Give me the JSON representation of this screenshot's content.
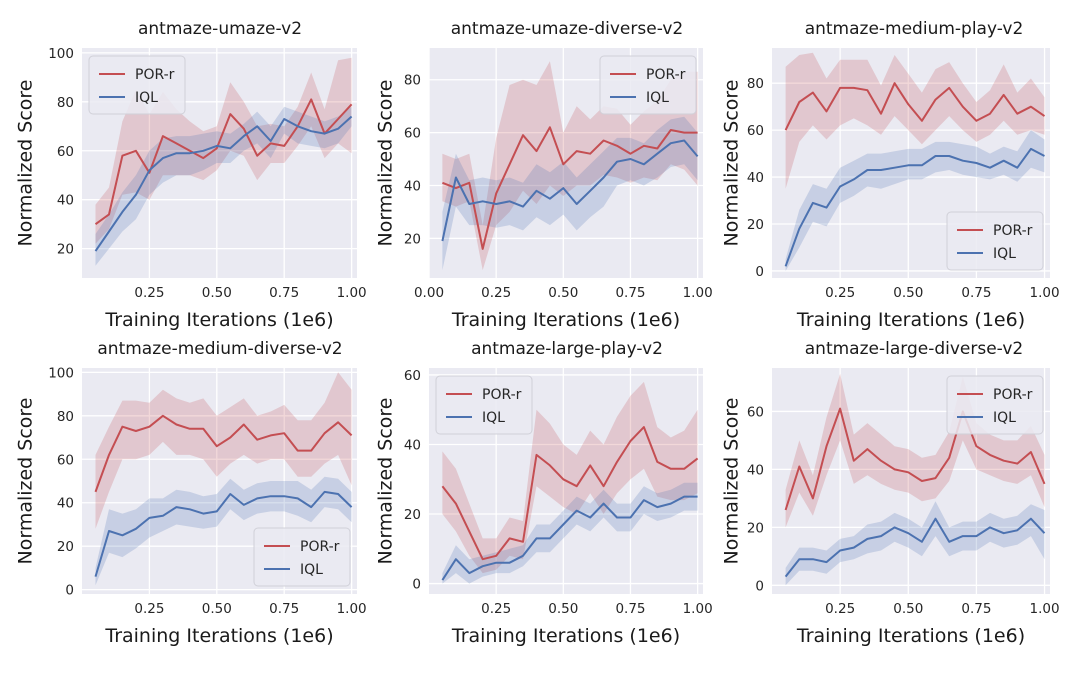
{
  "figure": {
    "colors": {
      "por": "#c44e52",
      "iql": "#4c72b0",
      "axes_bg": "#eaeaf2",
      "grid": "#ffffff"
    },
    "legend_labels": [
      "POR-r",
      "IQL"
    ]
  },
  "chart_data": [
    {
      "type": "line",
      "title": "antmaze-umaze-v2",
      "xlabel": "Training Iterations (1e6)",
      "ylabel": "Normalized Score",
      "xlim": [
        0.0,
        1.02
      ],
      "ylim": [
        8,
        102
      ],
      "xticks": [
        0.25,
        0.5,
        0.75,
        1.0
      ],
      "xticklabels": [
        "0.25",
        "0.50",
        "0.75",
        "1.00"
      ],
      "yticks": [
        20,
        40,
        60,
        80,
        100
      ],
      "legend": "top-left",
      "x": [
        0.05,
        0.1,
        0.15,
        0.2,
        0.25,
        0.3,
        0.35,
        0.4,
        0.45,
        0.5,
        0.55,
        0.6,
        0.65,
        0.7,
        0.75,
        0.8,
        0.85,
        0.9,
        0.95,
        1.0
      ],
      "series": [
        {
          "name": "POR-r",
          "values": [
            30,
            34,
            58,
            60,
            51,
            66,
            63,
            60,
            57,
            61,
            75,
            69,
            58,
            63,
            62,
            70,
            81,
            67,
            73,
            79
          ],
          "lower": [
            22,
            28,
            42,
            43,
            40,
            50,
            50,
            50,
            48,
            52,
            60,
            58,
            48,
            55,
            55,
            62,
            70,
            57,
            63,
            59
          ],
          "upper": [
            38,
            45,
            72,
            85,
            75,
            84,
            77,
            72,
            68,
            70,
            88,
            80,
            70,
            71,
            70,
            78,
            92,
            77,
            97,
            98
          ]
        },
        {
          "name": "IQL",
          "values": [
            19,
            27,
            35,
            42,
            52,
            57,
            59,
            59,
            60,
            62,
            61,
            66,
            70,
            64,
            73,
            70,
            68,
            67,
            69,
            74
          ],
          "lower": [
            13,
            20,
            27,
            32,
            42,
            47,
            50,
            50,
            52,
            55,
            55,
            60,
            63,
            57,
            67,
            63,
            62,
            61,
            63,
            70
          ],
          "upper": [
            26,
            34,
            43,
            50,
            60,
            65,
            66,
            66,
            67,
            68,
            67,
            71,
            76,
            70,
            78,
            76,
            74,
            72,
            74,
            78
          ]
        }
      ]
    },
    {
      "type": "line",
      "title": "antmaze-umaze-diverse-v2",
      "xlabel": "Training Iterations (1e6)",
      "ylabel": "Normalized Score",
      "xlim": [
        0.0,
        1.02
      ],
      "ylim": [
        5,
        92
      ],
      "xticks": [
        0.0,
        0.25,
        0.5,
        0.75,
        1.0
      ],
      "xticklabels": [
        "0.00",
        "0.25",
        "0.50",
        "0.75",
        "1.00"
      ],
      "yticks": [
        20,
        40,
        60,
        80
      ],
      "legend": "top-right",
      "x": [
        0.05,
        0.1,
        0.15,
        0.2,
        0.25,
        0.3,
        0.35,
        0.4,
        0.45,
        0.5,
        0.55,
        0.6,
        0.65,
        0.7,
        0.75,
        0.8,
        0.85,
        0.9,
        0.95,
        1.0
      ],
      "series": [
        {
          "name": "POR-r",
          "values": [
            41,
            39,
            41,
            16,
            37,
            48,
            59,
            53,
            62,
            48,
            53,
            52,
            57,
            55,
            52,
            55,
            54,
            61,
            60,
            60
          ],
          "lower": [
            34,
            32,
            34,
            8,
            25,
            30,
            38,
            33,
            40,
            36,
            40,
            40,
            44,
            43,
            41,
            43,
            42,
            48,
            46,
            40
          ],
          "upper": [
            52,
            50,
            52,
            25,
            58,
            78,
            80,
            78,
            87,
            60,
            70,
            65,
            70,
            69,
            63,
            68,
            72,
            80,
            83,
            83
          ]
        },
        {
          "name": "IQL",
          "values": [
            19,
            43,
            33,
            34,
            33,
            34,
            32,
            38,
            35,
            39,
            33,
            38,
            43,
            49,
            50,
            48,
            52,
            56,
            57,
            51
          ],
          "lower": [
            8,
            32,
            25,
            25,
            24,
            25,
            23,
            28,
            25,
            29,
            23,
            28,
            32,
            40,
            42,
            40,
            43,
            47,
            48,
            42
          ],
          "upper": [
            30,
            52,
            42,
            43,
            42,
            43,
            41,
            48,
            45,
            49,
            43,
            48,
            53,
            58,
            58,
            56,
            61,
            65,
            66,
            60
          ]
        }
      ]
    },
    {
      "type": "line",
      "title": "antmaze-medium-play-v2",
      "xlabel": "Training Iterations (1e6)",
      "ylabel": "Normalized Score",
      "xlim": [
        0.0,
        1.02
      ],
      "ylim": [
        -3,
        95
      ],
      "xticks": [
        0.25,
        0.5,
        0.75,
        1.0
      ],
      "xticklabels": [
        "0.25",
        "0.50",
        "0.75",
        "1.00"
      ],
      "yticks": [
        0,
        20,
        40,
        60,
        80
      ],
      "legend": "bottom-right",
      "x": [
        0.05,
        0.1,
        0.15,
        0.2,
        0.25,
        0.3,
        0.35,
        0.4,
        0.45,
        0.5,
        0.55,
        0.6,
        0.65,
        0.7,
        0.75,
        0.8,
        0.85,
        0.9,
        0.95,
        1.0
      ],
      "series": [
        {
          "name": "POR-r",
          "values": [
            60,
            72,
            76,
            68,
            78,
            78,
            77,
            67,
            80,
            71,
            64,
            73,
            78,
            70,
            64,
            67,
            75,
            67,
            70,
            66
          ],
          "lower": [
            35,
            55,
            62,
            56,
            62,
            65,
            62,
            58,
            66,
            60,
            54,
            60,
            66,
            60,
            55,
            58,
            64,
            58,
            60,
            58
          ],
          "upper": [
            87,
            92,
            93,
            82,
            90,
            90,
            90,
            79,
            92,
            84,
            76,
            86,
            89,
            80,
            72,
            77,
            88,
            76,
            82,
            74
          ]
        },
        {
          "name": "IQL",
          "values": [
            2,
            18,
            29,
            27,
            36,
            39,
            43,
            43,
            44,
            45,
            45,
            49,
            49,
            47,
            46,
            44,
            47,
            44,
            52,
            49
          ],
          "lower": [
            0,
            10,
            21,
            19,
            29,
            32,
            36,
            35,
            37,
            39,
            39,
            42,
            43,
            41,
            40,
            39,
            41,
            38,
            44,
            42
          ],
          "upper": [
            5,
            26,
            37,
            35,
            44,
            47,
            50,
            50,
            51,
            52,
            52,
            55,
            55,
            54,
            53,
            50,
            53,
            51,
            60,
            56
          ]
        }
      ]
    },
    {
      "type": "line",
      "title": "antmaze-medium-diverse-v2",
      "xlabel": "Training Iterations (1e6)",
      "ylabel": "Normalized Score",
      "xlim": [
        0.0,
        1.02
      ],
      "ylim": [
        -2,
        102
      ],
      "xticks": [
        0.25,
        0.5,
        0.75,
        1.0
      ],
      "xticklabels": [
        "0.25",
        "0.50",
        "0.75",
        "1.00"
      ],
      "yticks": [
        0,
        20,
        40,
        60,
        80,
        100
      ],
      "legend": "bottom-right",
      "x": [
        0.05,
        0.1,
        0.15,
        0.2,
        0.25,
        0.3,
        0.35,
        0.4,
        0.45,
        0.5,
        0.55,
        0.6,
        0.65,
        0.7,
        0.75,
        0.8,
        0.85,
        0.9,
        0.95,
        1.0
      ],
      "series": [
        {
          "name": "POR-r",
          "values": [
            45,
            62,
            75,
            73,
            75,
            80,
            76,
            74,
            74,
            66,
            70,
            76,
            69,
            71,
            72,
            64,
            64,
            72,
            77,
            71
          ],
          "lower": [
            28,
            45,
            60,
            60,
            62,
            68,
            62,
            62,
            60,
            52,
            58,
            62,
            58,
            60,
            60,
            52,
            52,
            58,
            62,
            48
          ],
          "upper": [
            62,
            75,
            87,
            87,
            86,
            92,
            88,
            86,
            88,
            80,
            84,
            88,
            80,
            82,
            85,
            78,
            78,
            86,
            100,
            92
          ]
        },
        {
          "name": "IQL",
          "values": [
            6,
            27,
            25,
            28,
            33,
            34,
            38,
            37,
            35,
            36,
            44,
            39,
            42,
            43,
            43,
            42,
            38,
            45,
            44,
            38
          ],
          "lower": [
            2,
            17,
            15,
            19,
            24,
            27,
            30,
            29,
            28,
            29,
            37,
            32,
            35,
            36,
            36,
            34,
            31,
            38,
            37,
            31
          ],
          "upper": [
            10,
            37,
            35,
            37,
            42,
            42,
            46,
            45,
            43,
            44,
            51,
            46,
            49,
            50,
            50,
            50,
            46,
            52,
            51,
            45
          ]
        }
      ]
    },
    {
      "type": "line",
      "title": "antmaze-large-play-v2",
      "xlabel": "Training Iterations (1e6)",
      "ylabel": "Normalized Score",
      "xlim": [
        0.0,
        1.02
      ],
      "ylim": [
        -3,
        62
      ],
      "xticks": [
        0.25,
        0.5,
        0.75,
        1.0
      ],
      "xticklabels": [
        "0.25",
        "0.50",
        "0.75",
        "1.00"
      ],
      "yticks": [
        0,
        20,
        40,
        60
      ],
      "legend": "top-left",
      "x": [
        0.05,
        0.1,
        0.15,
        0.2,
        0.25,
        0.3,
        0.35,
        0.4,
        0.45,
        0.5,
        0.55,
        0.6,
        0.65,
        0.7,
        0.75,
        0.8,
        0.85,
        0.9,
        0.95,
        1.0
      ],
      "series": [
        {
          "name": "POR-r",
          "values": [
            28,
            23,
            15,
            7,
            8,
            13,
            12,
            37,
            34,
            30,
            28,
            34,
            28,
            35,
            41,
            45,
            35,
            33,
            33,
            36
          ],
          "lower": [
            20,
            15,
            8,
            3,
            4,
            8,
            7,
            28,
            25,
            22,
            20,
            26,
            20,
            26,
            30,
            33,
            25,
            24,
            24,
            26
          ],
          "upper": [
            38,
            33,
            23,
            13,
            13,
            19,
            18,
            50,
            46,
            40,
            37,
            44,
            40,
            48,
            54,
            58,
            45,
            42,
            44,
            50
          ]
        },
        {
          "name": "IQL",
          "values": [
            1,
            7,
            3,
            5,
            6,
            6,
            8,
            13,
            13,
            17,
            21,
            19,
            23,
            19,
            19,
            24,
            22,
            23,
            25,
            25
          ],
          "lower": [
            0,
            3,
            0,
            2,
            3,
            3,
            5,
            9,
            9,
            13,
            17,
            15,
            19,
            15,
            15,
            20,
            18,
            19,
            21,
            21
          ],
          "upper": [
            3,
            11,
            7,
            8,
            9,
            10,
            11,
            17,
            17,
            21,
            25,
            23,
            27,
            23,
            23,
            28,
            26,
            27,
            29,
            29
          ]
        }
      ]
    },
    {
      "type": "line",
      "title": "antmaze-large-diverse-v2",
      "xlabel": "Training Iterations (1e6)",
      "ylabel": "Normalized Score",
      "xlim": [
        0.0,
        1.02
      ],
      "ylim": [
        -3,
        75
      ],
      "xticks": [
        0.25,
        0.5,
        0.75,
        1.0
      ],
      "xticklabels": [
        "0.25",
        "0.50",
        "0.75",
        "1.00"
      ],
      "yticks": [
        0,
        20,
        40,
        60
      ],
      "legend": "top-right",
      "x": [
        0.05,
        0.1,
        0.15,
        0.2,
        0.25,
        0.3,
        0.35,
        0.4,
        0.45,
        0.5,
        0.55,
        0.6,
        0.65,
        0.7,
        0.75,
        0.8,
        0.85,
        0.9,
        0.95,
        1.0
      ],
      "series": [
        {
          "name": "POR-r",
          "values": [
            26,
            41,
            30,
            48,
            61,
            43,
            47,
            43,
            40,
            39,
            36,
            37,
            44,
            60,
            48,
            45,
            43,
            42,
            46,
            35
          ],
          "lower": [
            20,
            32,
            24,
            38,
            50,
            35,
            38,
            35,
            33,
            32,
            29,
            30,
            36,
            50,
            40,
            38,
            36,
            35,
            38,
            27
          ],
          "upper": [
            33,
            50,
            38,
            58,
            73,
            52,
            56,
            52,
            48,
            47,
            44,
            45,
            53,
            72,
            56,
            52,
            50,
            50,
            55,
            45
          ]
        },
        {
          "name": "IQL",
          "values": [
            3,
            9,
            9,
            8,
            12,
            13,
            16,
            17,
            20,
            18,
            15,
            23,
            15,
            17,
            17,
            20,
            18,
            19,
            23,
            18
          ],
          "lower": [
            0,
            5,
            5,
            4,
            8,
            9,
            11,
            12,
            15,
            13,
            10,
            17,
            10,
            12,
            12,
            15,
            13,
            14,
            17,
            9
          ],
          "upper": [
            6,
            13,
            13,
            12,
            16,
            17,
            21,
            22,
            25,
            23,
            20,
            29,
            20,
            22,
            22,
            25,
            23,
            24,
            28,
            26
          ]
        }
      ]
    }
  ]
}
